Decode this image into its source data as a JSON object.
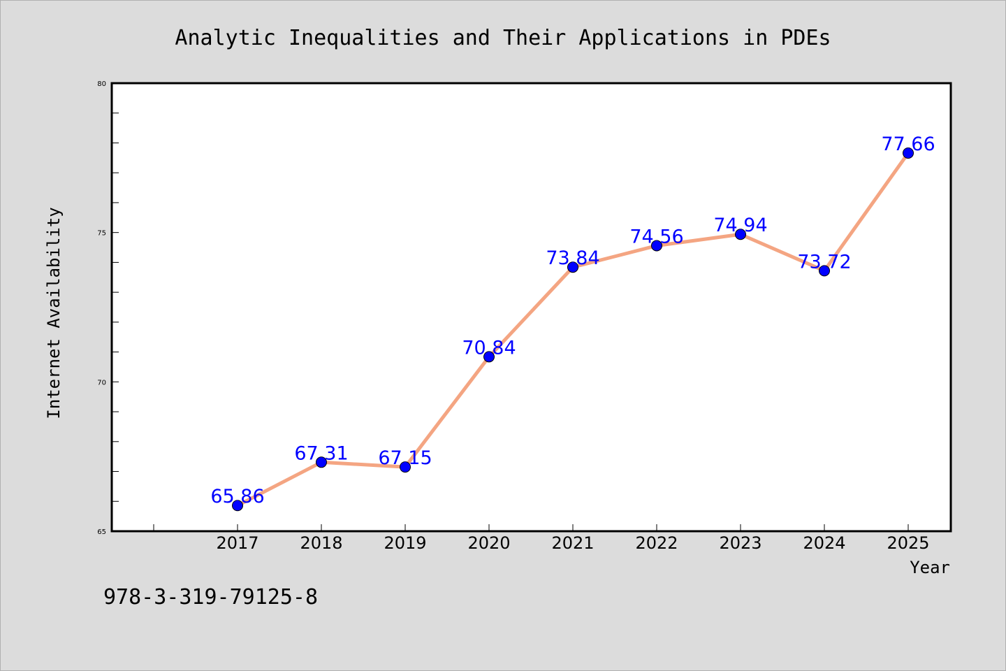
{
  "chart_data": {
    "type": "line",
    "title": "Analytic Inequalities and Their Applications in PDEs",
    "xlabel": "Year",
    "ylabel": "Internet Availability",
    "categories": [
      "2017",
      "2018",
      "2019",
      "2020",
      "2021",
      "2022",
      "2023",
      "2024",
      "2025"
    ],
    "series": [
      {
        "values": [
          65.86,
          67.31,
          67.15,
          70.84,
          73.84,
          74.56,
          74.94,
          73.72,
          77.66
        ],
        "line_color": "#f4a582",
        "marker_color": "#0000ff"
      }
    ],
    "data_labels": [
      "65.86",
      "67.31",
      "67.15",
      "70.84",
      "73.84",
      "74.56",
      "74.94",
      "73.72",
      "77.66"
    ],
    "ylim": [
      65,
      80
    ],
    "yticks": [
      65,
      70,
      75,
      80
    ],
    "ytick_labels": [
      "65",
      "70",
      "75",
      "80"
    ],
    "grid": false,
    "legend": "none",
    "label_color": "#0000ff"
  },
  "footer": {
    "isbn": "978-3-319-79125-8"
  }
}
